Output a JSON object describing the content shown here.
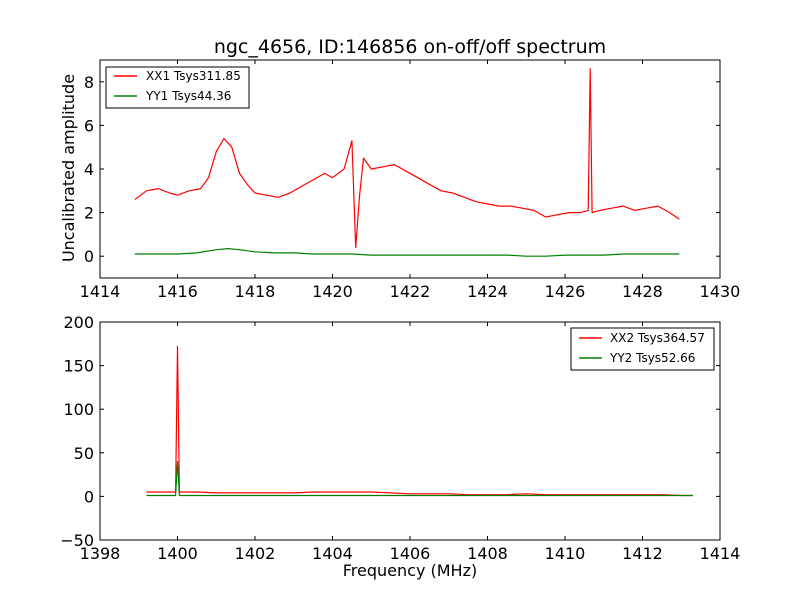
{
  "chart_data": [
    {
      "type": "line",
      "title": "ngc_4656, ID:146856 on-off/off spectrum",
      "xlabel": "",
      "ylabel": "Uncalibrated amplitude",
      "xlim": [
        1414,
        1430
      ],
      "ylim": [
        -1,
        9
      ],
      "xticks": [
        1414,
        1416,
        1418,
        1420,
        1422,
        1424,
        1426,
        1428,
        1430
      ],
      "xtick_labels": [
        "1414",
        "1416",
        "1418",
        "1420",
        "1422",
        "1424",
        "1426",
        "1428",
        "1430"
      ],
      "yticks": [
        0,
        2,
        4,
        6,
        8
      ],
      "ytick_labels": [
        "0",
        "2",
        "4",
        "6",
        "8"
      ],
      "legend_position": "top-left",
      "series": [
        {
          "name": "XX1 Tsys311.85",
          "color": "#ff0000",
          "x": [
            1414.9,
            1415.2,
            1415.5,
            1415.8,
            1416.0,
            1416.3,
            1416.6,
            1416.8,
            1417.0,
            1417.2,
            1417.4,
            1417.6,
            1417.8,
            1418.0,
            1418.3,
            1418.6,
            1418.9,
            1419.2,
            1419.5,
            1419.8,
            1420.0,
            1420.3,
            1420.5,
            1420.6,
            1420.7,
            1420.8,
            1421.0,
            1421.3,
            1421.6,
            1421.9,
            1422.2,
            1422.5,
            1422.8,
            1423.1,
            1423.4,
            1423.7,
            1424.0,
            1424.3,
            1424.6,
            1424.9,
            1425.2,
            1425.5,
            1425.8,
            1426.1,
            1426.4,
            1426.6,
            1426.65,
            1426.7,
            1426.9,
            1427.2,
            1427.5,
            1427.8,
            1428.1,
            1428.4,
            1428.7,
            1428.95
          ],
          "values": [
            2.6,
            3.0,
            3.1,
            2.9,
            2.8,
            3.0,
            3.1,
            3.6,
            4.8,
            5.4,
            5.0,
            3.8,
            3.3,
            2.9,
            2.8,
            2.7,
            2.9,
            3.2,
            3.5,
            3.8,
            3.6,
            4.0,
            5.3,
            0.4,
            2.8,
            4.5,
            4.0,
            4.1,
            4.2,
            3.9,
            3.6,
            3.3,
            3.0,
            2.9,
            2.7,
            2.5,
            2.4,
            2.3,
            2.3,
            2.2,
            2.1,
            1.8,
            1.9,
            2.0,
            2.0,
            2.1,
            8.6,
            2.0,
            2.1,
            2.2,
            2.3,
            2.1,
            2.2,
            2.3,
            2.0,
            1.7
          ]
        },
        {
          "name": "YY1 Tsys44.36",
          "color": "#008000",
          "x": [
            1414.9,
            1415.5,
            1416.0,
            1416.5,
            1417.0,
            1417.3,
            1417.6,
            1418.0,
            1418.5,
            1419.0,
            1419.5,
            1420.0,
            1420.5,
            1421.0,
            1421.5,
            1422.0,
            1422.5,
            1423.0,
            1423.5,
            1424.0,
            1424.5,
            1425.0,
            1425.5,
            1426.0,
            1426.5,
            1427.0,
            1427.5,
            1428.0,
            1428.5,
            1428.95
          ],
          "values": [
            0.1,
            0.1,
            0.1,
            0.15,
            0.3,
            0.35,
            0.3,
            0.2,
            0.15,
            0.15,
            0.1,
            0.1,
            0.1,
            0.05,
            0.05,
            0.05,
            0.05,
            0.05,
            0.05,
            0.05,
            0.05,
            0.0,
            0.0,
            0.05,
            0.05,
            0.05,
            0.1,
            0.1,
            0.1,
            0.1
          ]
        }
      ]
    },
    {
      "type": "line",
      "title": "",
      "xlabel": "Frequency (MHz)",
      "ylabel": "",
      "xlim": [
        1398,
        1414
      ],
      "ylim": [
        -50,
        200
      ],
      "xticks": [
        1398,
        1400,
        1402,
        1404,
        1406,
        1408,
        1410,
        1412,
        1414
      ],
      "xtick_labels": [
        "1398",
        "1400",
        "1402",
        "1404",
        "1406",
        "1408",
        "1410",
        "1412",
        "1414"
      ],
      "yticks": [
        -50,
        0,
        50,
        100,
        150,
        200
      ],
      "ytick_labels": [
        "−50",
        "0",
        "50",
        "100",
        "150",
        "200"
      ],
      "legend_position": "top-right",
      "series": [
        {
          "name": "XX2 Tsys364.57",
          "color": "#ff0000",
          "x": [
            1399.2,
            1399.6,
            1399.95,
            1400.0,
            1400.05,
            1400.5,
            1401.0,
            1401.5,
            1402.0,
            1402.5,
            1403.0,
            1403.5,
            1404.0,
            1404.5,
            1405.0,
            1405.5,
            1406.0,
            1406.5,
            1407.0,
            1407.5,
            1408.0,
            1408.5,
            1409.0,
            1409.5,
            1410.0,
            1410.5,
            1411.0,
            1411.5,
            1412.0,
            1412.5,
            1413.0,
            1413.3
          ],
          "values": [
            5,
            5,
            5,
            172,
            5,
            5,
            4,
            4,
            4,
            4,
            4,
            5,
            5,
            5,
            5,
            4,
            3,
            3,
            3,
            2,
            2,
            2,
            3,
            2,
            2,
            2,
            2,
            2,
            2,
            2,
            1,
            1
          ]
        },
        {
          "name": "YY2 Tsys52.66",
          "color": "#008000",
          "x": [
            1399.2,
            1399.95,
            1400.0,
            1400.05,
            1401.0,
            1402.0,
            1403.0,
            1404.0,
            1405.0,
            1406.0,
            1407.0,
            1408.0,
            1409.0,
            1410.0,
            1411.0,
            1412.0,
            1413.0,
            1413.3
          ],
          "values": [
            1,
            1,
            40,
            1,
            1,
            1,
            1,
            1,
            1,
            1,
            1,
            1,
            1,
            1,
            1,
            1,
            1,
            1
          ]
        }
      ]
    }
  ]
}
